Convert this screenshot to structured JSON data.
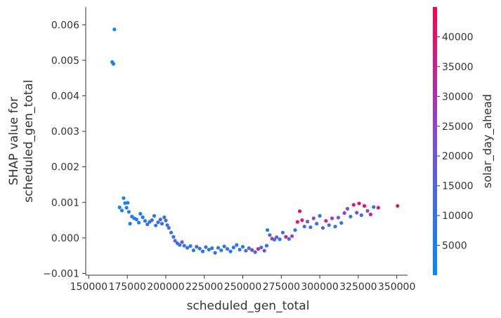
{
  "chart_data": {
    "type": "scatter",
    "title": "",
    "xlabel": "scheduled_gen_total",
    "ylabel_lines": [
      "SHAP value for",
      "scheduled_gen_total"
    ],
    "xlim": [
      148000,
      357000
    ],
    "ylim": [
      -0.00105,
      0.0065
    ],
    "x_ticks": [
      150000,
      175000,
      200000,
      225000,
      250000,
      275000,
      300000,
      325000,
      350000
    ],
    "x_tick_labels": [
      "150000",
      "175000",
      "200000",
      "225000",
      "250000",
      "275000",
      "300000",
      "325000",
      "350000"
    ],
    "y_ticks": [
      -0.001,
      0.0,
      0.001,
      0.002,
      0.003,
      0.004,
      0.005,
      0.006
    ],
    "y_tick_labels": [
      "−0.001",
      "0.000",
      "0.001",
      "0.002",
      "0.003",
      "0.004",
      "0.005",
      "0.006"
    ],
    "colorbar": {
      "label": "solar_day_ahead",
      "range": [
        0,
        45000
      ],
      "ticks": [
        5000,
        10000,
        15000,
        20000,
        25000,
        30000,
        35000,
        40000
      ],
      "tick_labels": [
        "5000",
        "10000",
        "15000",
        "20000",
        "25000",
        "30000",
        "35000",
        "40000"
      ],
      "color_low": "#008bfb",
      "color_mid": "#7c4fd6",
      "color_high": "#ff0051"
    },
    "grid": false,
    "points": [
      {
        "x": 165200,
        "y": 0.00495,
        "c": 3000
      },
      {
        "x": 166000,
        "y": 0.0049,
        "c": 3000
      },
      {
        "x": 166600,
        "y": 0.00587,
        "c": 3000
      },
      {
        "x": 170000,
        "y": 0.00086,
        "c": 4000
      },
      {
        "x": 171500,
        "y": 0.00077,
        "c": 5000
      },
      {
        "x": 172600,
        "y": 0.00112,
        "c": 3000
      },
      {
        "x": 173500,
        "y": 0.00098,
        "c": 4000
      },
      {
        "x": 174500,
        "y": 0.00085,
        "c": 5000
      },
      {
        "x": 175300,
        "y": 0.00099,
        "c": 3000
      },
      {
        "x": 176000,
        "y": 0.00073,
        "c": 6000
      },
      {
        "x": 176800,
        "y": 0.0004,
        "c": 4000
      },
      {
        "x": 178000,
        "y": 0.0006,
        "c": 8000
      },
      {
        "x": 179500,
        "y": 0.00055,
        "c": 5000
      },
      {
        "x": 181000,
        "y": 0.00052,
        "c": 7000
      },
      {
        "x": 182500,
        "y": 0.00043,
        "c": 4000
      },
      {
        "x": 183500,
        "y": 0.00068,
        "c": 6000
      },
      {
        "x": 185000,
        "y": 0.00058,
        "c": 5000
      },
      {
        "x": 186500,
        "y": 0.00048,
        "c": 9000
      },
      {
        "x": 188000,
        "y": 0.00038,
        "c": 10000
      },
      {
        "x": 189500,
        "y": 0.00045,
        "c": 6000
      },
      {
        "x": 191000,
        "y": 0.0005,
        "c": 12000
      },
      {
        "x": 192500,
        "y": 0.00062,
        "c": 5000
      },
      {
        "x": 193500,
        "y": 0.00035,
        "c": 14000
      },
      {
        "x": 195000,
        "y": 0.00044,
        "c": 7000
      },
      {
        "x": 196500,
        "y": 0.00052,
        "c": 15000
      },
      {
        "x": 197500,
        "y": 0.0004,
        "c": 11000
      },
      {
        "x": 199000,
        "y": 0.00058,
        "c": 6000
      },
      {
        "x": 200000,
        "y": 0.00049,
        "c": 16000
      },
      {
        "x": 201000,
        "y": 0.00036,
        "c": 9000
      },
      {
        "x": 202000,
        "y": 0.00028,
        "c": 13000
      },
      {
        "x": 203500,
        "y": 0.00015,
        "c": 8000
      },
      {
        "x": 205000,
        "y": 3e-05,
        "c": 10000
      },
      {
        "x": 206000,
        "y": -8e-05,
        "c": 18000
      },
      {
        "x": 207500,
        "y": -0.00015,
        "c": 7000
      },
      {
        "x": 209000,
        "y": -0.0002,
        "c": 9000
      },
      {
        "x": 210500,
        "y": -0.00012,
        "c": 23000
      },
      {
        "x": 212000,
        "y": -0.00022,
        "c": 6000
      },
      {
        "x": 214000,
        "y": -0.00028,
        "c": 12000
      },
      {
        "x": 216000,
        "y": -0.00023,
        "c": 5000
      },
      {
        "x": 218000,
        "y": -0.00035,
        "c": 8000
      },
      {
        "x": 220000,
        "y": -0.00025,
        "c": 14000
      },
      {
        "x": 222000,
        "y": -0.0003,
        "c": 6000
      },
      {
        "x": 224000,
        "y": -0.00038,
        "c": 9000
      },
      {
        "x": 226000,
        "y": -0.00026,
        "c": 11000
      },
      {
        "x": 228000,
        "y": -0.00033,
        "c": 5000
      },
      {
        "x": 230000,
        "y": -0.00029,
        "c": 7000
      },
      {
        "x": 232000,
        "y": -0.00042,
        "c": 13000
      },
      {
        "x": 234000,
        "y": -0.00028,
        "c": 10000
      },
      {
        "x": 236000,
        "y": -0.00035,
        "c": 6000
      },
      {
        "x": 238000,
        "y": -0.00024,
        "c": 8000
      },
      {
        "x": 240000,
        "y": -0.00031,
        "c": 12000
      },
      {
        "x": 242000,
        "y": -0.00038,
        "c": 5000
      },
      {
        "x": 244000,
        "y": -0.00027,
        "c": 9000
      },
      {
        "x": 246000,
        "y": -0.0002,
        "c": 7000
      },
      {
        "x": 248000,
        "y": -0.00033,
        "c": 11000
      },
      {
        "x": 250000,
        "y": -0.00025,
        "c": 6000
      },
      {
        "x": 252000,
        "y": -0.00036,
        "c": 15000
      },
      {
        "x": 254000,
        "y": -0.00029,
        "c": 8000
      },
      {
        "x": 256000,
        "y": -0.00034,
        "c": 28000
      },
      {
        "x": 258000,
        "y": -0.0004,
        "c": 10000
      },
      {
        "x": 260000,
        "y": -0.00031,
        "c": 34000
      },
      {
        "x": 262000,
        "y": -0.00027,
        "c": 7000
      },
      {
        "x": 264000,
        "y": -0.00036,
        "c": 25000
      },
      {
        "x": 265500,
        "y": -0.00022,
        "c": 9000
      },
      {
        "x": 266000,
        "y": 0.00022,
        "c": 5000
      },
      {
        "x": 267500,
        "y": 8e-05,
        "c": 12000
      },
      {
        "x": 269000,
        "y": -2e-05,
        "c": 30000
      },
      {
        "x": 270500,
        "y": -5e-05,
        "c": 8000
      },
      {
        "x": 272000,
        "y": 2e-05,
        "c": 21000
      },
      {
        "x": 274000,
        "y": -4e-05,
        "c": 6000
      },
      {
        "x": 276000,
        "y": 0.00015,
        "c": 9000
      },
      {
        "x": 278000,
        "y": 3e-05,
        "c": 36000
      },
      {
        "x": 280000,
        "y": -3e-05,
        "c": 11000
      },
      {
        "x": 282000,
        "y": 5e-05,
        "c": 26000
      },
      {
        "x": 284000,
        "y": 0.00022,
        "c": 7000
      },
      {
        "x": 285500,
        "y": 0.00045,
        "c": 40000
      },
      {
        "x": 287000,
        "y": 0.00075,
        "c": 42000
      },
      {
        "x": 288500,
        "y": 0.0005,
        "c": 37000
      },
      {
        "x": 290000,
        "y": 0.00032,
        "c": 12000
      },
      {
        "x": 292000,
        "y": 0.00046,
        "c": 20000
      },
      {
        "x": 294000,
        "y": 0.0003,
        "c": 8000
      },
      {
        "x": 296000,
        "y": 0.00055,
        "c": 24000
      },
      {
        "x": 298000,
        "y": 0.0004,
        "c": 10000
      },
      {
        "x": 300000,
        "y": 0.00062,
        "c": 6000
      },
      {
        "x": 302000,
        "y": 0.00028,
        "c": 15000
      },
      {
        "x": 304000,
        "y": 0.00048,
        "c": 33000
      },
      {
        "x": 306000,
        "y": 0.00036,
        "c": 9000
      },
      {
        "x": 308000,
        "y": 0.00055,
        "c": 27000
      },
      {
        "x": 310000,
        "y": 0.00032,
        "c": 11000
      },
      {
        "x": 312000,
        "y": 0.00057,
        "c": 22000
      },
      {
        "x": 314000,
        "y": 0.00042,
        "c": 7000
      },
      {
        "x": 316000,
        "y": 0.0007,
        "c": 29000
      },
      {
        "x": 318000,
        "y": 0.00082,
        "c": 18000
      },
      {
        "x": 320000,
        "y": 0.0006,
        "c": 8000
      },
      {
        "x": 322000,
        "y": 0.00093,
        "c": 38000
      },
      {
        "x": 324000,
        "y": 0.00071,
        "c": 23000
      },
      {
        "x": 325500,
        "y": 0.00097,
        "c": 41000
      },
      {
        "x": 327000,
        "y": 0.00064,
        "c": 9000
      },
      {
        "x": 329000,
        "y": 0.0009,
        "c": 43000
      },
      {
        "x": 331000,
        "y": 0.00076,
        "c": 19000
      },
      {
        "x": 333000,
        "y": 0.00066,
        "c": 35000
      },
      {
        "x": 335000,
        "y": 0.00087,
        "c": 12000
      },
      {
        "x": 338000,
        "y": 0.00085,
        "c": 36000
      },
      {
        "x": 350500,
        "y": 0.0009,
        "c": 39000
      }
    ]
  }
}
